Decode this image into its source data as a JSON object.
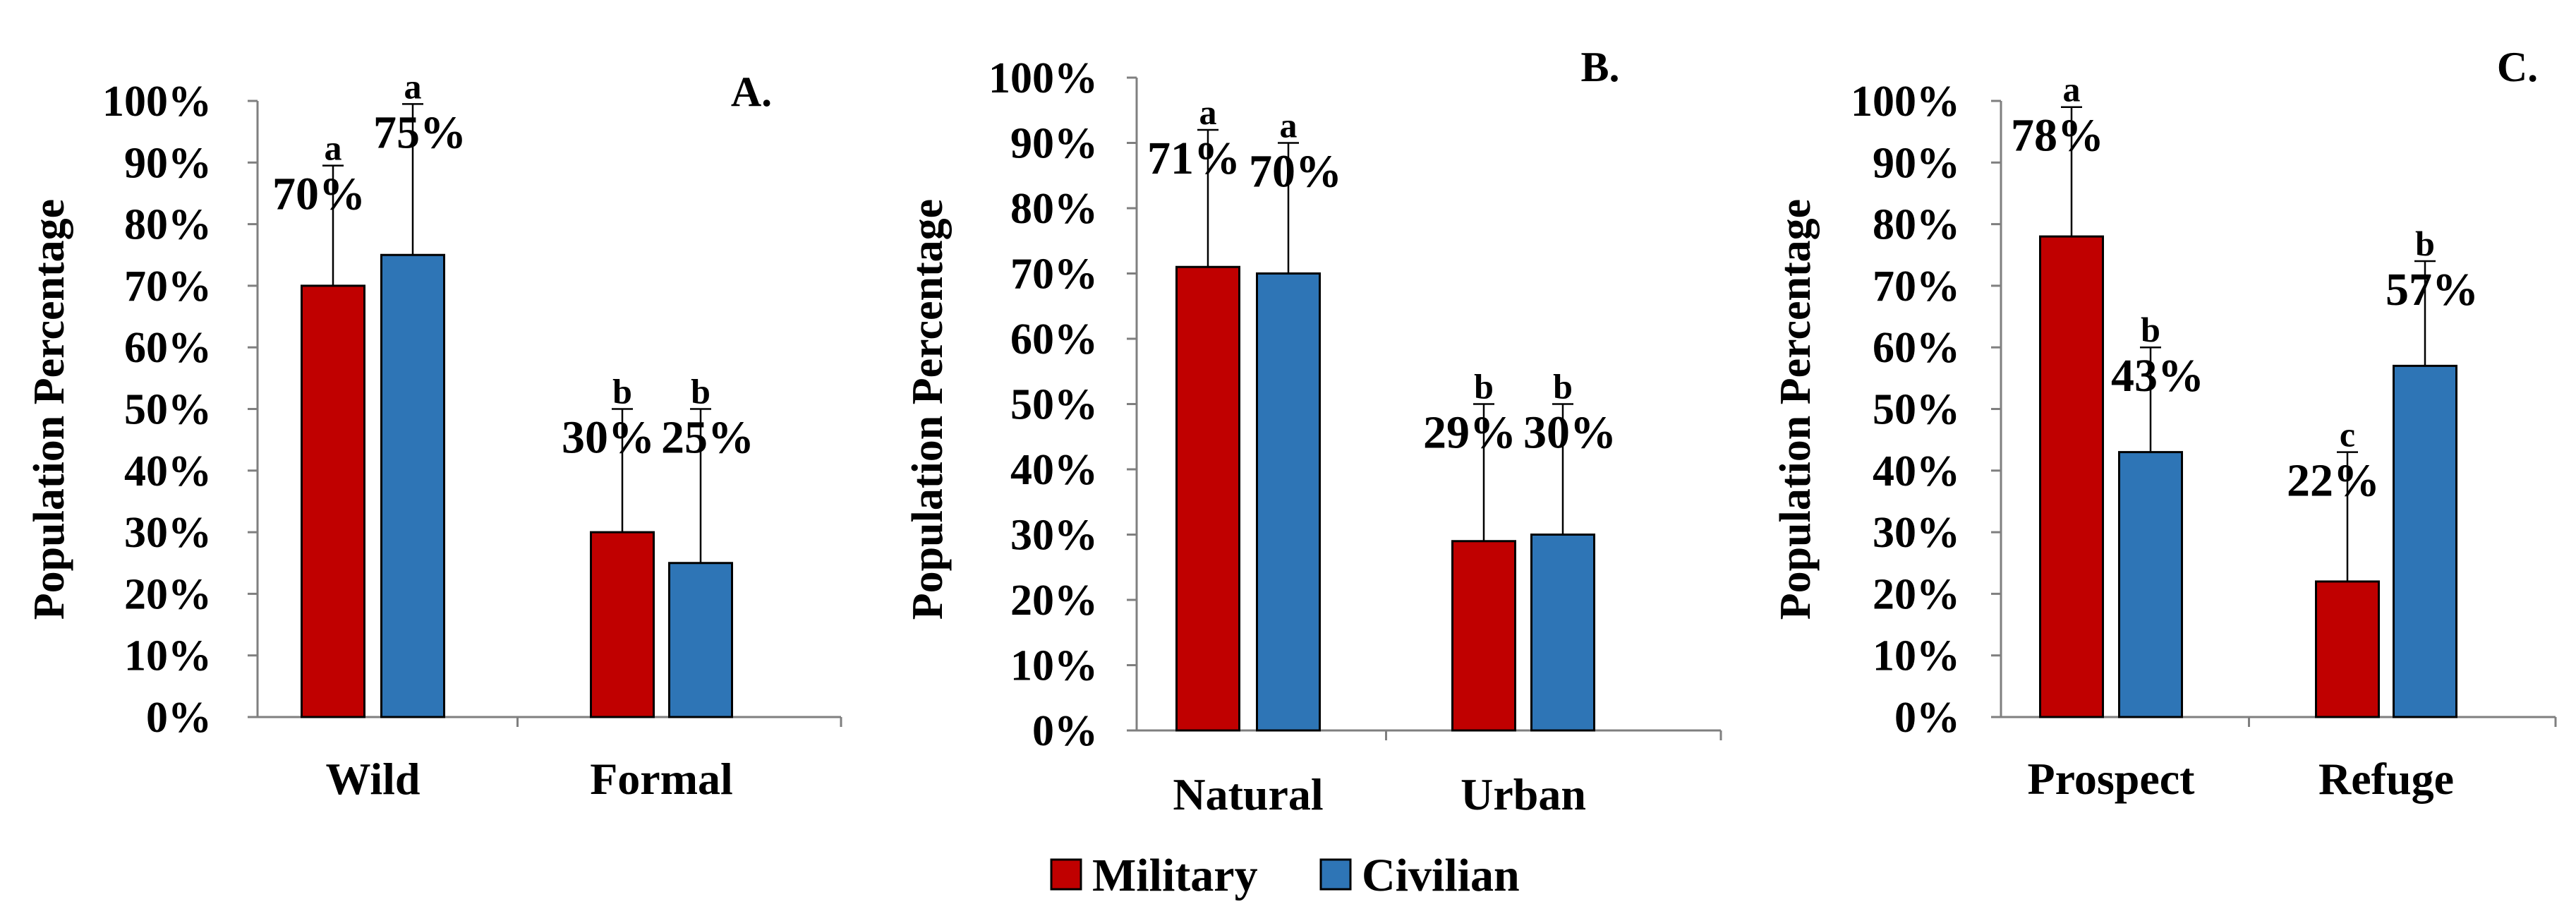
{
  "legend": [
    {
      "name": "Military",
      "color": "#C00000"
    },
    {
      "name": "Civilian",
      "color": "#2E75B6"
    }
  ],
  "chart_data": [
    {
      "type": "bar",
      "title": "A.",
      "ylabel": "Population Percentage",
      "ylim": [
        0,
        100
      ],
      "yticks": [
        "0%",
        "10%",
        "20%",
        "30%",
        "40%",
        "50%",
        "60%",
        "70%",
        "80%",
        "90%",
        "100%"
      ],
      "categories": [
        "Wild",
        "Formal"
      ],
      "series": [
        {
          "name": "Military",
          "values": [
            70,
            30
          ],
          "errors": [
            19.5,
            20
          ],
          "labels": [
            "70%",
            "30%"
          ],
          "sig": [
            "a",
            "b"
          ]
        },
        {
          "name": "Civilian",
          "values": [
            75,
            25
          ],
          "errors": [
            24.5,
            25
          ],
          "labels": [
            "75%",
            "25%"
          ],
          "sig": [
            "a",
            "b"
          ]
        }
      ]
    },
    {
      "type": "bar",
      "title": "B.",
      "ylabel": "Population Percentage",
      "ylim": [
        0,
        100
      ],
      "yticks": [
        "0%",
        "10%",
        "20%",
        "30%",
        "40%",
        "50%",
        "60%",
        "70%",
        "80%",
        "90%",
        "100%"
      ],
      "categories": [
        "Natural",
        "Urban"
      ],
      "series": [
        {
          "name": "Military",
          "values": [
            71,
            29
          ],
          "errors": [
            21,
            21
          ],
          "labels": [
            "71%",
            "29%"
          ],
          "sig": [
            "a",
            "b"
          ]
        },
        {
          "name": "Civilian",
          "values": [
            70,
            30
          ],
          "errors": [
            20,
            20
          ],
          "labels": [
            "70%",
            "30%"
          ],
          "sig": [
            "a",
            "b"
          ]
        }
      ]
    },
    {
      "type": "bar",
      "title": "C.",
      "ylabel": "Population Percentage",
      "ylim": [
        0,
        100
      ],
      "yticks": [
        "0%",
        "10%",
        "20%",
        "30%",
        "40%",
        "50%",
        "60%",
        "70%",
        "80%",
        "90%",
        "100%"
      ],
      "categories": [
        "Prospect",
        "Refuge"
      ],
      "series": [
        {
          "name": "Military",
          "values": [
            78,
            22
          ],
          "errors": [
            21,
            21
          ],
          "labels": [
            "78%",
            "22%"
          ],
          "sig": [
            "a",
            "c"
          ]
        },
        {
          "name": "Civilian",
          "values": [
            43,
            57
          ],
          "errors": [
            17,
            17
          ],
          "labels": [
            "43%",
            "57%"
          ],
          "sig": [
            "b",
            "b"
          ]
        }
      ]
    }
  ]
}
